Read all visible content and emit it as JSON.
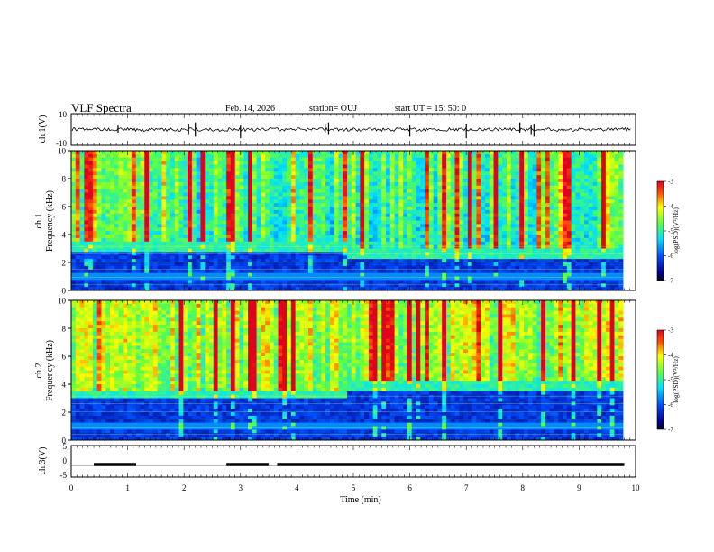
{
  "header": {
    "title": "VLF Spectra",
    "date": "Feb. 14, 2026",
    "station": "station= OUJ",
    "start_ut": "start  UT  =   15: 50: 0"
  },
  "chart_data": [
    {
      "type": "line",
      "ylabel": "ch.1(V)",
      "ylim": [
        -10,
        10
      ],
      "yticks": [
        "10",
        "-10"
      ],
      "description_values": {
        "baseline": 0,
        "noise_amplitude": 1
      }
    },
    {
      "type": "heatmap",
      "ylabel_line1": "ch.1",
      "ylabel_line2": "Frequency  (kHz)",
      "ylim": [
        0,
        10
      ],
      "yticks": [
        "0",
        "2",
        "4",
        "6",
        "8",
        "10"
      ],
      "colorbar": {
        "label": "log(PSD)(V²/Hz)",
        "range": [
          -7,
          -3
        ],
        "ticks": [
          "-3",
          "-4",
          "-5",
          "-6",
          "-7"
        ]
      }
    },
    {
      "type": "heatmap",
      "ylabel_line1": "ch.2",
      "ylabel_line2": "Frequency  (kHz)",
      "ylim": [
        0,
        10
      ],
      "yticks": [
        "0",
        "2",
        "4",
        "6",
        "8",
        "10"
      ],
      "colorbar": {
        "label": "log(PSD)(V²/Hz)",
        "range": [
          -7,
          -3
        ],
        "ticks": [
          "-3",
          "-4",
          "-5",
          "-6",
          "-7"
        ]
      }
    },
    {
      "type": "line",
      "ylabel": "ch.3(V)",
      "ylim": [
        -5,
        5
      ],
      "yticks": [
        "5",
        "0",
        "-5"
      ],
      "segments": [
        [
          0.0,
          0.4,
          -1.2
        ],
        [
          0.4,
          1.15,
          -1.0
        ],
        [
          1.15,
          2.75,
          -1.2
        ],
        [
          2.75,
          3.5,
          -1.0
        ],
        [
          3.5,
          3.65,
          -1.2
        ],
        [
          3.65,
          9.8,
          -1.0
        ]
      ]
    }
  ],
  "xaxis": {
    "label": "Time  (min)",
    "xlim": [
      0,
      10
    ],
    "ticks": [
      "0",
      "1",
      "2",
      "3",
      "4",
      "5",
      "6",
      "7",
      "8",
      "9",
      "10"
    ]
  }
}
